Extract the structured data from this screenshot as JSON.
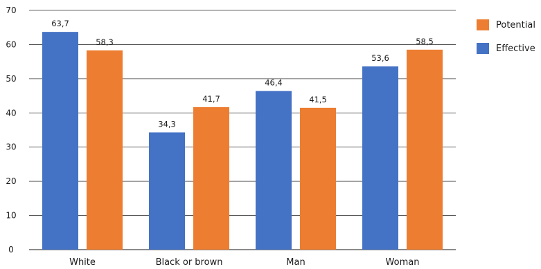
{
  "chart_data": {
    "type": "bar",
    "title": "",
    "xlabel": "",
    "ylabel": "",
    "categories": [
      "White",
      "Black or brown",
      "Man",
      "Woman"
    ],
    "series": [
      {
        "name": "Effective",
        "values": [
          63.7,
          34.3,
          46.4,
          53.6
        ],
        "labels": [
          "63,7",
          "34,3",
          "46,4",
          "53,6"
        ],
        "color": "#4472c4"
      },
      {
        "name": "Potential",
        "values": [
          58.3,
          41.7,
          41.5,
          58.5
        ],
        "labels": [
          "58,3",
          "41,7",
          "41,5",
          "58,5"
        ],
        "color": "#ed7d31"
      }
    ],
    "ylim": [
      0,
      70
    ],
    "yticks": [
      0,
      10,
      20,
      30,
      40,
      50,
      60,
      70
    ],
    "ytick_labels": [
      "0",
      "10",
      "20",
      "30",
      "40",
      "50",
      "60",
      "70"
    ],
    "grid": true,
    "legend": {
      "placement": "right",
      "order": [
        "Potential",
        "Effective"
      ]
    }
  }
}
